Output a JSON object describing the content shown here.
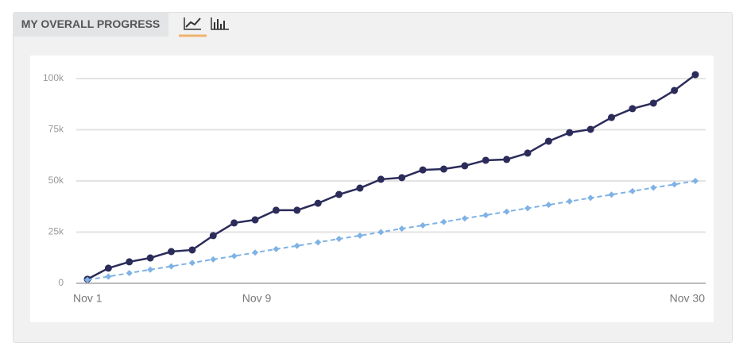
{
  "chart_data": {
    "type": "line",
    "title": "MY OVERALL PROGRESS",
    "x": [
      1,
      2,
      3,
      4,
      5,
      6,
      7,
      8,
      9,
      10,
      11,
      12,
      13,
      14,
      15,
      16,
      17,
      18,
      19,
      20,
      21,
      22,
      23,
      24,
      25,
      26,
      27,
      28,
      29,
      30
    ],
    "xlim": [
      1,
      30
    ],
    "xticks": [
      {
        "value": 1,
        "label": "Nov 1"
      },
      {
        "value": 9,
        "label": "Nov 9"
      },
      {
        "value": 30,
        "label": "Nov 30"
      }
    ],
    "ylim": [
      0,
      105000
    ],
    "yticks": [
      0,
      {
        "value": 25000,
        "label": "25k"
      },
      {
        "value": 50000,
        "label": "50k"
      },
      {
        "value": 75000,
        "label": "75k"
      },
      {
        "value": 100000,
        "label": "100k"
      }
    ],
    "grid": true,
    "series": [
      {
        "color": "#2b2c5a",
        "style": "solid",
        "marker": "circle",
        "values": [
          2000,
          7400,
          10500,
          12400,
          15500,
          16300,
          23300,
          29500,
          31000,
          35700,
          35700,
          39100,
          43400,
          46500,
          50800,
          51600,
          55400,
          55800,
          57400,
          60100,
          60500,
          63600,
          69400,
          73600,
          75200,
          81000,
          85300,
          88000,
          94200,
          101900
        ]
      },
      {
        "color": "#7fb2e5",
        "style": "dashed",
        "marker": "diamond",
        "values": [
          1700,
          3300,
          5000,
          6700,
          8300,
          10000,
          11700,
          13300,
          15000,
          16700,
          18300,
          20000,
          21700,
          23300,
          25000,
          26700,
          28300,
          30000,
          31700,
          33300,
          35000,
          36700,
          38300,
          40000,
          41700,
          43300,
          45000,
          46700,
          48300,
          50000
        ]
      }
    ]
  }
}
